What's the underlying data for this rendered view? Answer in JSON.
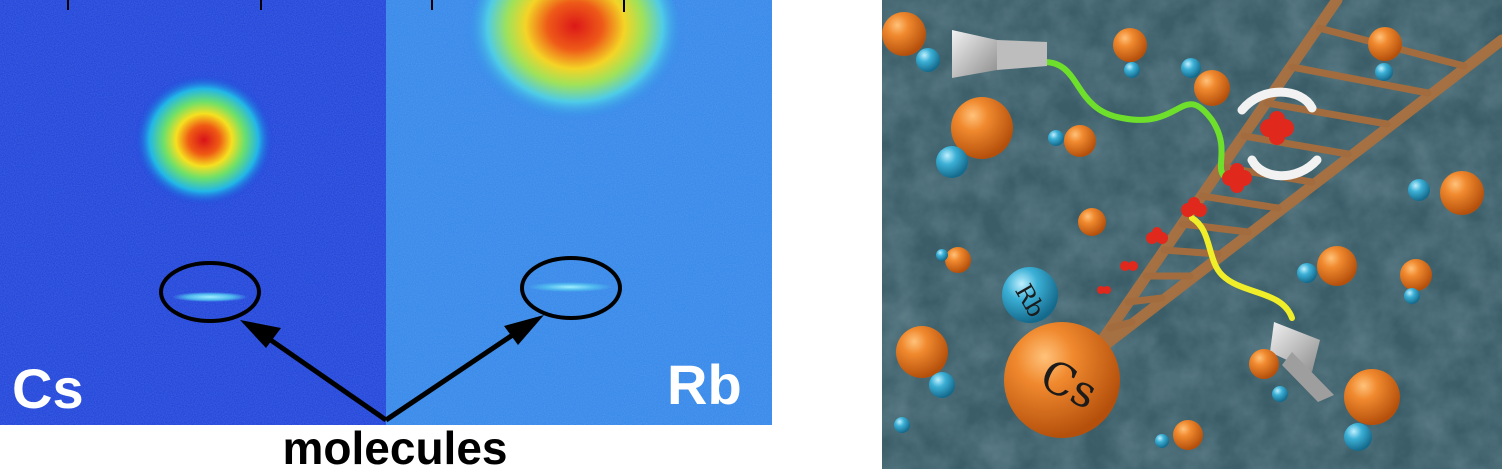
{
  "left_panel": {
    "left_label": "Cs",
    "right_label": "Rb",
    "caption": "molecules"
  },
  "right_panel": {
    "rb_label": "Rb",
    "cs_label": "Cs"
  },
  "colors": {
    "cs_background": "#1a3fd8",
    "rb_background": "#2f86e8",
    "surface": "#3b5d68",
    "cs_atom": "#e2781f",
    "rb_atom": "#2f9bc4",
    "ladder": "#a06a3c",
    "green_path": "#6ee02c",
    "yellow_path": "#f0ee28",
    "molecule": "#e0281c"
  }
}
